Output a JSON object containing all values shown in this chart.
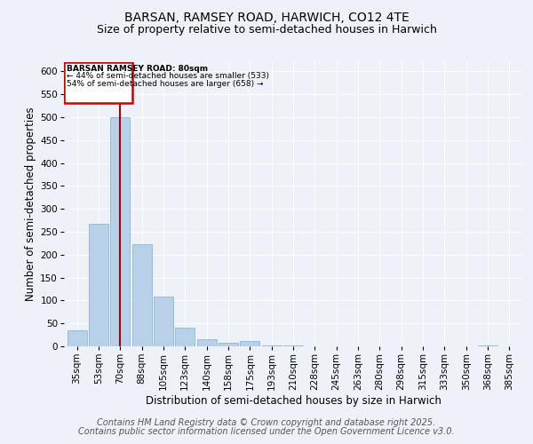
{
  "title1": "BARSAN, RAMSEY ROAD, HARWICH, CO12 4TE",
  "title2": "Size of property relative to semi-detached houses in Harwich",
  "xlabel": "Distribution of semi-detached houses by size in Harwich",
  "ylabel": "Number of semi-detached properties",
  "categories": [
    "35sqm",
    "53sqm",
    "70sqm",
    "88sqm",
    "105sqm",
    "123sqm",
    "140sqm",
    "158sqm",
    "175sqm",
    "193sqm",
    "210sqm",
    "228sqm",
    "245sqm",
    "263sqm",
    "280sqm",
    "298sqm",
    "315sqm",
    "333sqm",
    "350sqm",
    "368sqm",
    "385sqm"
  ],
  "values": [
    35,
    267,
    500,
    222,
    108,
    40,
    15,
    8,
    12,
    2,
    2,
    0,
    0,
    0,
    0,
    0,
    0,
    0,
    0,
    2,
    0
  ],
  "bar_color": "#b8d0e8",
  "bar_edge_color": "#7bafd4",
  "property_bar_index": 2,
  "marker_line_color": "#aa0000",
  "annotation_line1": "BARSAN RAMSEY ROAD: 80sqm",
  "annotation_line2": "← 44% of semi-detached houses are smaller (533)",
  "annotation_line3": "54% of semi-detached houses are larger (658) →",
  "box_edge_color": "#cc0000",
  "ylim": [
    0,
    620
  ],
  "yticks": [
    0,
    50,
    100,
    150,
    200,
    250,
    300,
    350,
    400,
    450,
    500,
    550,
    600
  ],
  "footer1": "Contains HM Land Registry data © Crown copyright and database right 2025.",
  "footer2": "Contains public sector information licensed under the Open Government Licence v3.0.",
  "bg_color": "#eef2f8",
  "grid_color": "#ffffff",
  "title_fontsize": 10,
  "subtitle_fontsize": 9,
  "axis_label_fontsize": 8.5,
  "tick_fontsize": 7.5,
  "footer_fontsize": 7
}
